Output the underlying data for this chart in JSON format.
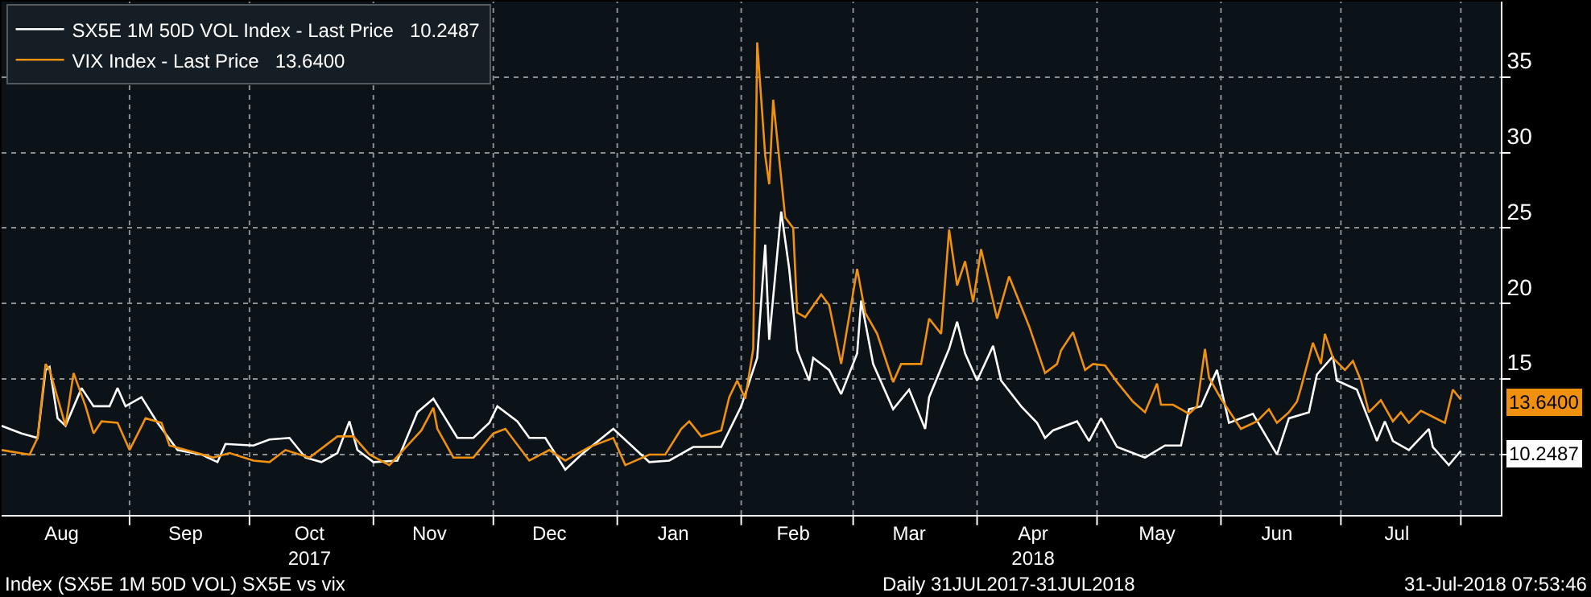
{
  "chart_data": {
    "type": "line",
    "annotations": [
      {
        "text": "10.2487",
        "x": "2018-07-31",
        "y": 10.2487
      },
      {
        "text": "13.6400",
        "x": "2018-07-31",
        "y": 13.64
      },
      "Index (SX5E 1M 50D VOL) SX5E vs vix",
      "Daily 31JUL2017-31JUL2018",
      "31-Jul-2018 07:53:46"
    ],
    "series": [
      {
        "name": "SX5E 1M 50D VOL Index - Last Price   10.2487",
        "color": "#ffffff",
        "x": [
          "2017-07-31",
          "2017-08-05",
          "2017-08-09",
          "2017-08-11",
          "2017-08-12",
          "2017-08-14",
          "2017-08-16",
          "2017-08-20",
          "2017-08-23",
          "2017-08-27",
          "2017-08-29",
          "2017-08-31",
          "2017-09-04",
          "2017-09-08",
          "2017-09-13",
          "2017-09-19",
          "2017-09-23",
          "2017-09-25",
          "2017-10-02",
          "2017-10-06",
          "2017-10-11",
          "2017-10-15",
          "2017-10-19",
          "2017-10-23",
          "2017-10-26",
          "2017-10-28",
          "2017-11-01",
          "2017-11-07",
          "2017-11-12",
          "2017-11-16",
          "2017-11-22",
          "2017-11-26",
          "2017-11-30",
          "2017-12-02",
          "2017-12-07",
          "2017-12-10",
          "2017-12-14",
          "2017-12-19",
          "2017-12-23",
          "2017-12-31",
          "2018-01-09",
          "2018-01-14",
          "2018-01-20",
          "2018-01-27",
          "2018-02-01",
          "2018-02-05",
          "2018-02-07",
          "2018-02-08",
          "2018-02-11",
          "2018-02-13",
          "2018-02-15",
          "2018-02-18",
          "2018-02-19",
          "2018-02-23",
          "2018-02-26",
          "2018-03-02",
          "2018-03-03",
          "2018-03-06",
          "2018-03-11",
          "2018-03-15",
          "2018-03-19",
          "2018-03-20",
          "2018-03-25",
          "2018-03-27",
          "2018-03-29",
          "2018-04-01",
          "2018-04-05",
          "2018-04-07",
          "2018-04-12",
          "2018-04-16",
          "2018-04-18",
          "2018-04-20",
          "2018-04-26",
          "2018-04-29",
          "2018-05-02",
          "2018-05-06",
          "2018-05-13",
          "2018-05-18",
          "2018-05-22",
          "2018-05-24",
          "2018-05-27",
          "2018-05-31",
          "2018-06-03",
          "2018-06-09",
          "2018-06-15",
          "2018-06-18",
          "2018-06-23",
          "2018-06-25",
          "2018-06-29",
          "2018-06-30",
          "2018-07-05",
          "2018-07-10",
          "2018-07-12",
          "2018-07-14",
          "2018-07-18",
          "2018-07-23",
          "2018-07-24",
          "2018-07-28",
          "2018-07-31"
        ],
        "values": [
          11.9,
          11.4,
          11.1,
          15.6,
          15.8,
          12.4,
          11.9,
          14.4,
          13.2,
          13.2,
          14.4,
          13.2,
          13.8,
          12.1,
          10.3,
          10.0,
          9.5,
          10.7,
          10.6,
          11.0,
          11.1,
          9.8,
          9.5,
          10.1,
          12.2,
          10.3,
          9.5,
          9.6,
          12.8,
          13.7,
          11.1,
          11.1,
          12.1,
          13.2,
          12.2,
          11.1,
          11.1,
          9.0,
          10.0,
          11.7,
          9.5,
          9.6,
          10.5,
          10.5,
          13.2,
          16.4,
          23.9,
          17.6,
          26.1,
          22.3,
          16.9,
          14.9,
          16.4,
          15.6,
          14.0,
          16.7,
          20.2,
          16.0,
          13.0,
          14.3,
          11.7,
          13.8,
          17.0,
          18.8,
          16.7,
          14.9,
          17.2,
          14.9,
          13.2,
          12.1,
          11.1,
          11.6,
          12.2,
          10.9,
          12.4,
          10.5,
          9.8,
          10.6,
          10.6,
          13.0,
          13.2,
          15.6,
          12.1,
          12.7,
          10.0,
          12.4,
          12.8,
          15.3,
          16.5,
          14.9,
          14.3,
          10.9,
          12.2,
          10.9,
          10.3,
          11.7,
          10.5,
          9.3,
          10.2487
        ]
      },
      {
        "name": "VIX Index - Last Price   13.6400",
        "color": "#f0900f",
        "x": [
          "2017-07-31",
          "2017-08-07",
          "2017-08-09",
          "2017-08-11",
          "2017-08-12",
          "2017-08-16",
          "2017-08-18",
          "2017-08-21",
          "2017-08-23",
          "2017-08-25",
          "2017-08-29",
          "2017-09-01",
          "2017-09-05",
          "2017-09-09",
          "2017-09-11",
          "2017-09-22",
          "2017-09-26",
          "2017-10-02",
          "2017-10-06",
          "2017-10-10",
          "2017-10-16",
          "2017-10-23",
          "2017-10-27",
          "2017-10-31",
          "2017-11-05",
          "2017-11-13",
          "2017-11-16",
          "2017-11-17",
          "2017-11-21",
          "2017-11-26",
          "2017-12-01",
          "2017-12-04",
          "2017-12-10",
          "2017-12-15",
          "2017-12-19",
          "2017-12-25",
          "2017-12-31",
          "2018-01-03",
          "2018-01-09",
          "2018-01-13",
          "2018-01-17",
          "2018-01-19",
          "2018-01-22",
          "2018-01-27",
          "2018-01-29",
          "2018-01-31",
          "2018-02-02",
          "2018-02-04",
          "2018-02-05",
          "2018-02-07",
          "2018-02-08",
          "2018-02-09",
          "2018-02-12",
          "2018-02-14",
          "2018-02-15",
          "2018-02-17",
          "2018-02-21",
          "2018-02-23",
          "2018-02-26",
          "2018-03-02",
          "2018-03-04",
          "2018-03-07",
          "2018-03-11",
          "2018-03-13",
          "2018-03-18",
          "2018-03-20",
          "2018-03-23",
          "2018-03-25",
          "2018-03-27",
          "2018-03-29",
          "2018-03-31",
          "2018-04-02",
          "2018-04-06",
          "2018-04-09",
          "2018-04-14",
          "2018-04-18",
          "2018-04-21",
          "2018-04-22",
          "2018-04-25",
          "2018-04-28",
          "2018-04-30",
          "2018-05-03",
          "2018-05-06",
          "2018-05-10",
          "2018-05-13",
          "2018-05-16",
          "2018-05-17",
          "2018-05-20",
          "2018-05-22",
          "2018-05-24",
          "2018-05-26",
          "2018-05-28",
          "2018-05-29",
          "2018-06-01",
          "2018-06-06",
          "2018-06-10",
          "2018-06-13",
          "2018-06-15",
          "2018-06-18",
          "2018-06-20",
          "2018-06-21",
          "2018-06-24",
          "2018-06-26",
          "2018-06-27",
          "2018-06-29",
          "2018-07-02",
          "2018-07-04",
          "2018-07-06",
          "2018-07-08",
          "2018-07-11",
          "2018-07-14",
          "2018-07-16",
          "2018-07-18",
          "2018-07-21",
          "2018-07-27",
          "2018-07-29",
          "2018-07-31"
        ],
        "values": [
          10.3,
          10.0,
          11.1,
          16.0,
          15.6,
          11.9,
          15.4,
          13.2,
          11.4,
          12.2,
          12.1,
          10.3,
          12.4,
          12.1,
          10.6,
          9.8,
          10.1,
          9.6,
          9.5,
          10.3,
          9.8,
          11.2,
          11.2,
          10.0,
          9.3,
          11.6,
          13.1,
          11.7,
          9.8,
          9.8,
          11.4,
          11.7,
          9.6,
          10.3,
          9.6,
          10.5,
          11.1,
          9.3,
          10.0,
          10.0,
          11.7,
          12.2,
          11.2,
          11.6,
          13.8,
          14.9,
          13.7,
          17.0,
          37.3,
          29.8,
          27.9,
          33.5,
          25.7,
          25.0,
          19.4,
          19.1,
          20.6,
          19.9,
          16.0,
          22.3,
          19.4,
          18.0,
          14.8,
          16.0,
          16.0,
          19.0,
          18.0,
          24.9,
          21.2,
          22.8,
          20.1,
          23.6,
          19.0,
          21.8,
          18.5,
          15.4,
          16.0,
          16.9,
          18.1,
          15.6,
          16.0,
          15.9,
          14.8,
          13.5,
          12.8,
          14.7,
          13.3,
          13.3,
          13.0,
          12.7,
          13.2,
          17.0,
          15.1,
          13.7,
          11.7,
          12.2,
          13.0,
          12.1,
          12.8,
          13.5,
          14.4,
          17.4,
          16.0,
          18.0,
          16.4,
          15.6,
          16.2,
          14.9,
          12.8,
          13.6,
          12.2,
          12.8,
          12.1,
          12.9,
          12.1,
          14.3,
          13.64
        ]
      }
    ],
    "xlim": [
      "2017-07-31",
      "2018-08-10"
    ],
    "xticks": [
      {
        "value": "2017-08-15",
        "label": "Aug"
      },
      {
        "value": "2017-09-01",
        "label": null
      },
      {
        "value": "2017-09-15",
        "label": "Sep"
      },
      {
        "value": "2017-10-01",
        "label": null
      },
      {
        "value": "2017-10-16",
        "label": "Oct\n2017"
      },
      {
        "value": "2017-11-01",
        "label": null
      },
      {
        "value": "2017-11-15",
        "label": "Nov"
      },
      {
        "value": "2017-12-01",
        "label": null
      },
      {
        "value": "2017-12-15",
        "label": "Dec"
      },
      {
        "value": "2018-01-01",
        "label": null
      },
      {
        "value": "2018-01-15",
        "label": "Jan"
      },
      {
        "value": "2018-02-01",
        "label": null
      },
      {
        "value": "2018-02-14",
        "label": "Feb"
      },
      {
        "value": "2018-03-01",
        "label": null
      },
      {
        "value": "2018-03-15",
        "label": "Mar"
      },
      {
        "value": "2018-04-01",
        "label": null
      },
      {
        "value": "2018-04-15",
        "label": "Apr\n2018"
      },
      {
        "value": "2018-05-01",
        "label": null
      },
      {
        "value": "2018-05-16",
        "label": "May"
      },
      {
        "value": "2018-06-01",
        "label": null
      },
      {
        "value": "2018-06-15",
        "label": "Jun"
      },
      {
        "value": "2018-07-01",
        "label": null
      },
      {
        "value": "2018-07-15",
        "label": "Jul"
      },
      {
        "value": "2018-07-31",
        "label": null
      }
    ],
    "ylim": [
      6,
      40
    ],
    "yticks": [
      {
        "value": 10,
        "label": null
      },
      15,
      20,
      25,
      30,
      35
    ],
    "grid": true,
    "legend": "top left"
  }
}
